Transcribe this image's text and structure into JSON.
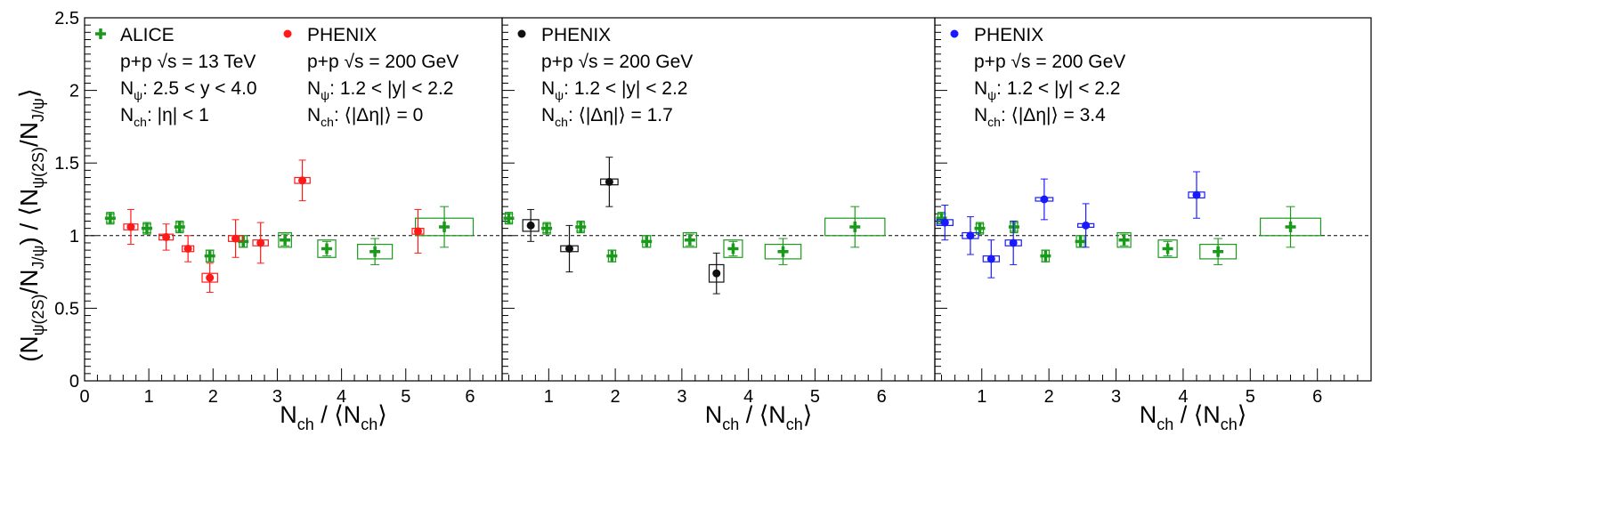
{
  "ylabel": {
    "open": "(N",
    "sub1": "ψ(2S)",
    "slash1": "/N",
    "sub2": "J/ψ",
    "mid": ") / ⟨N",
    "sub3": "ψ(2S)",
    "slash2": "/N",
    "sub4": "J/ψ",
    "close": "⟩"
  },
  "xlabel": {
    "n": "N",
    "sub1": "ch",
    "mid": " / ⟨N",
    "sub2": "ch",
    "close": "⟩"
  },
  "y_tick_labels": [
    "0",
    "0.5",
    "1",
    "1.5",
    "2",
    "2.5"
  ],
  "x_tick_labels": [
    "0",
    "1",
    "2",
    "3",
    "4",
    "5",
    "6"
  ],
  "colors": {
    "alice": "#1a9a1a",
    "phenix_red": "#ff1a1a",
    "phenix_black": "#111111",
    "phenix_blue": "#1a1aff"
  },
  "panels": [
    {
      "legend": [
        {
          "marker": "cross",
          "color": "#1a9a1a",
          "name": "ALICE",
          "lines": [
            {
              "a": "p+p  √s = 13 TeV"
            },
            {
              "a": "N",
              "sub": "ψ",
              "b": ": 2.5 < y < 4.0"
            },
            {
              "a": "N",
              "sub": "ch",
              "b": ": |η| < 1"
            }
          ]
        },
        {
          "marker": "dot",
          "color": "#ff1a1a",
          "name": "PHENIX",
          "lines": [
            {
              "a": "p+p  √s = 200 GeV"
            },
            {
              "a": "N",
              "sub": "ψ",
              "b": ": 1.2 < |y| < 2.2"
            },
            {
              "a": "N",
              "sub": "ch",
              "b": ": ⟨|Δη|⟩ = 0"
            }
          ]
        }
      ]
    },
    {
      "legend": [
        {
          "marker": "dot",
          "color": "#111111",
          "name": "PHENIX",
          "lines": [
            {
              "a": "p+p  √s = 200 GeV"
            },
            {
              "a": "N",
              "sub": "ψ",
              "b": ": 1.2 < |y| < 2.2"
            },
            {
              "a": "N",
              "sub": "ch",
              "b": ": ⟨|Δη|⟩ = 1.7"
            }
          ]
        }
      ]
    },
    {
      "legend": [
        {
          "marker": "dot",
          "color": "#1a1aff",
          "name": "PHENIX",
          "lines": [
            {
              "a": "p+p  √s = 200 GeV"
            },
            {
              "a": "N",
              "sub": "ψ",
              "b": ": 1.2 < |y| < 2.2"
            },
            {
              "a": "N",
              "sub": "ch",
              "b": ": ⟨|Δη|⟩ = 3.4"
            }
          ]
        }
      ]
    }
  ],
  "chart_data": [
    {
      "type": "scatter",
      "xlim": [
        0,
        6.5
      ],
      "ylim": [
        0,
        2.5
      ],
      "reference_line": 1,
      "series": [
        {
          "name": "ALICE",
          "marker": "cross",
          "color": "#1a9a1a",
          "points": [
            {
              "x": 0.4,
              "y": 1.12,
              "err": 0.03,
              "xw": 0.05,
              "sys": 0.04
            },
            {
              "x": 0.97,
              "y": 1.05,
              "err": 0.03,
              "xw": 0.05,
              "sys": 0.04
            },
            {
              "x": 1.48,
              "y": 1.06,
              "err": 0.03,
              "xw": 0.05,
              "sys": 0.04
            },
            {
              "x": 1.95,
              "y": 0.86,
              "err": 0.04,
              "xw": 0.05,
              "sys": 0.04
            },
            {
              "x": 2.47,
              "y": 0.96,
              "err": 0.04,
              "xw": 0.06,
              "sys": 0.04
            },
            {
              "x": 3.12,
              "y": 0.97,
              "err": 0.04,
              "xw": 0.1,
              "sys": 0.05
            },
            {
              "x": 3.77,
              "y": 0.91,
              "err": 0.05,
              "xw": 0.14,
              "sys": 0.06
            },
            {
              "x": 4.52,
              "y": 0.89,
              "err": 0.09,
              "xw": 0.27,
              "sys": 0.05
            },
            {
              "x": 5.6,
              "y": 1.06,
              "err": 0.14,
              "xw": 0.45,
              "sys": 0.06
            }
          ]
        },
        {
          "name": "PHENIX",
          "marker": "dot",
          "color": "#ff1a1a",
          "points": [
            {
              "x": 0.72,
              "y": 1.06,
              "err": 0.12,
              "xw": 0.11,
              "sys": 0.02
            },
            {
              "x": 1.27,
              "y": 0.99,
              "err": 0.09,
              "xw": 0.11,
              "sys": 0.02
            },
            {
              "x": 1.61,
              "y": 0.91,
              "err": 0.09,
              "xw": 0.09,
              "sys": 0.02
            },
            {
              "x": 1.95,
              "y": 0.71,
              "err": 0.1,
              "xw": 0.12,
              "sys": 0.03
            },
            {
              "x": 2.35,
              "y": 0.98,
              "err": 0.13,
              "xw": 0.11,
              "sys": 0.02
            },
            {
              "x": 2.74,
              "y": 0.95,
              "err": 0.14,
              "xw": 0.12,
              "sys": 0.02
            },
            {
              "x": 3.39,
              "y": 1.38,
              "err": 0.14,
              "xw": 0.12,
              "sys": 0.02
            },
            {
              "x": 5.19,
              "y": 1.03,
              "err": 0.15,
              "xw": 0.09,
              "sys": 0.02
            }
          ]
        }
      ]
    },
    {
      "type": "scatter",
      "xlim": [
        0.3,
        6.8
      ],
      "ylim": [
        0,
        2.5
      ],
      "reference_line": 1,
      "series": [
        {
          "name": "ALICE",
          "marker": "cross",
          "color": "#1a9a1a",
          "points": [
            {
              "x": 0.4,
              "y": 1.12,
              "err": 0.03,
              "xw": 0.05,
              "sys": 0.04
            },
            {
              "x": 0.97,
              "y": 1.05,
              "err": 0.03,
              "xw": 0.05,
              "sys": 0.04
            },
            {
              "x": 1.48,
              "y": 1.06,
              "err": 0.03,
              "xw": 0.05,
              "sys": 0.04
            },
            {
              "x": 1.95,
              "y": 0.86,
              "err": 0.04,
              "xw": 0.05,
              "sys": 0.04
            },
            {
              "x": 2.47,
              "y": 0.96,
              "err": 0.04,
              "xw": 0.06,
              "sys": 0.04
            },
            {
              "x": 3.12,
              "y": 0.97,
              "err": 0.04,
              "xw": 0.1,
              "sys": 0.05
            },
            {
              "x": 3.77,
              "y": 0.91,
              "err": 0.05,
              "xw": 0.14,
              "sys": 0.06
            },
            {
              "x": 4.52,
              "y": 0.89,
              "err": 0.09,
              "xw": 0.27,
              "sys": 0.05
            },
            {
              "x": 5.6,
              "y": 1.06,
              "err": 0.14,
              "xw": 0.45,
              "sys": 0.06
            }
          ]
        },
        {
          "name": "PHENIX",
          "marker": "dot",
          "color": "#111111",
          "points": [
            {
              "x": 0.73,
              "y": 1.07,
              "err": 0.11,
              "xw": 0.12,
              "sys": 0.04
            },
            {
              "x": 1.31,
              "y": 0.91,
              "err": 0.16,
              "xw": 0.13,
              "sys": 0.02
            },
            {
              "x": 1.91,
              "y": 1.37,
              "err": 0.17,
              "xw": 0.13,
              "sys": 0.02
            },
            {
              "x": 3.52,
              "y": 0.74,
              "err": 0.14,
              "xw": 0.11,
              "sys": 0.06
            }
          ]
        }
      ]
    },
    {
      "type": "scatter",
      "xlim": [
        0.3,
        6.8
      ],
      "ylim": [
        0,
        2.5
      ],
      "reference_line": 1,
      "series": [
        {
          "name": "ALICE",
          "marker": "cross",
          "color": "#1a9a1a",
          "points": [
            {
              "x": 0.4,
              "y": 1.12,
              "err": 0.03,
              "xw": 0.05,
              "sys": 0.04
            },
            {
              "x": 0.97,
              "y": 1.05,
              "err": 0.03,
              "xw": 0.05,
              "sys": 0.04
            },
            {
              "x": 1.48,
              "y": 1.06,
              "err": 0.03,
              "xw": 0.05,
              "sys": 0.04
            },
            {
              "x": 1.95,
              "y": 0.86,
              "err": 0.04,
              "xw": 0.05,
              "sys": 0.04
            },
            {
              "x": 2.47,
              "y": 0.96,
              "err": 0.04,
              "xw": 0.06,
              "sys": 0.04
            },
            {
              "x": 3.12,
              "y": 0.97,
              "err": 0.04,
              "xw": 0.1,
              "sys": 0.05
            },
            {
              "x": 3.77,
              "y": 0.91,
              "err": 0.05,
              "xw": 0.14,
              "sys": 0.06
            },
            {
              "x": 4.52,
              "y": 0.89,
              "err": 0.09,
              "xw": 0.27,
              "sys": 0.05
            },
            {
              "x": 5.6,
              "y": 1.06,
              "err": 0.14,
              "xw": 0.45,
              "sys": 0.06
            }
          ]
        },
        {
          "name": "PHENIX",
          "marker": "dot",
          "color": "#1a1aff",
          "points": [
            {
              "x": 0.45,
              "y": 1.09,
              "err": 0.12,
              "xw": 0.12,
              "sys": 0.02
            },
            {
              "x": 0.83,
              "y": 1.0,
              "err": 0.13,
              "xw": 0.12,
              "sys": 0.02
            },
            {
              "x": 1.14,
              "y": 0.84,
              "err": 0.13,
              "xw": 0.12,
              "sys": 0.02
            },
            {
              "x": 1.47,
              "y": 0.95,
              "err": 0.15,
              "xw": 0.12,
              "sys": 0.02
            },
            {
              "x": 1.93,
              "y": 1.25,
              "err": 0.14,
              "xw": 0.13,
              "sys": 0.01
            },
            {
              "x": 2.55,
              "y": 1.07,
              "err": 0.15,
              "xw": 0.12,
              "sys": 0.01
            },
            {
              "x": 4.2,
              "y": 1.28,
              "err": 0.16,
              "xw": 0.12,
              "sys": 0.02
            }
          ]
        }
      ]
    }
  ]
}
